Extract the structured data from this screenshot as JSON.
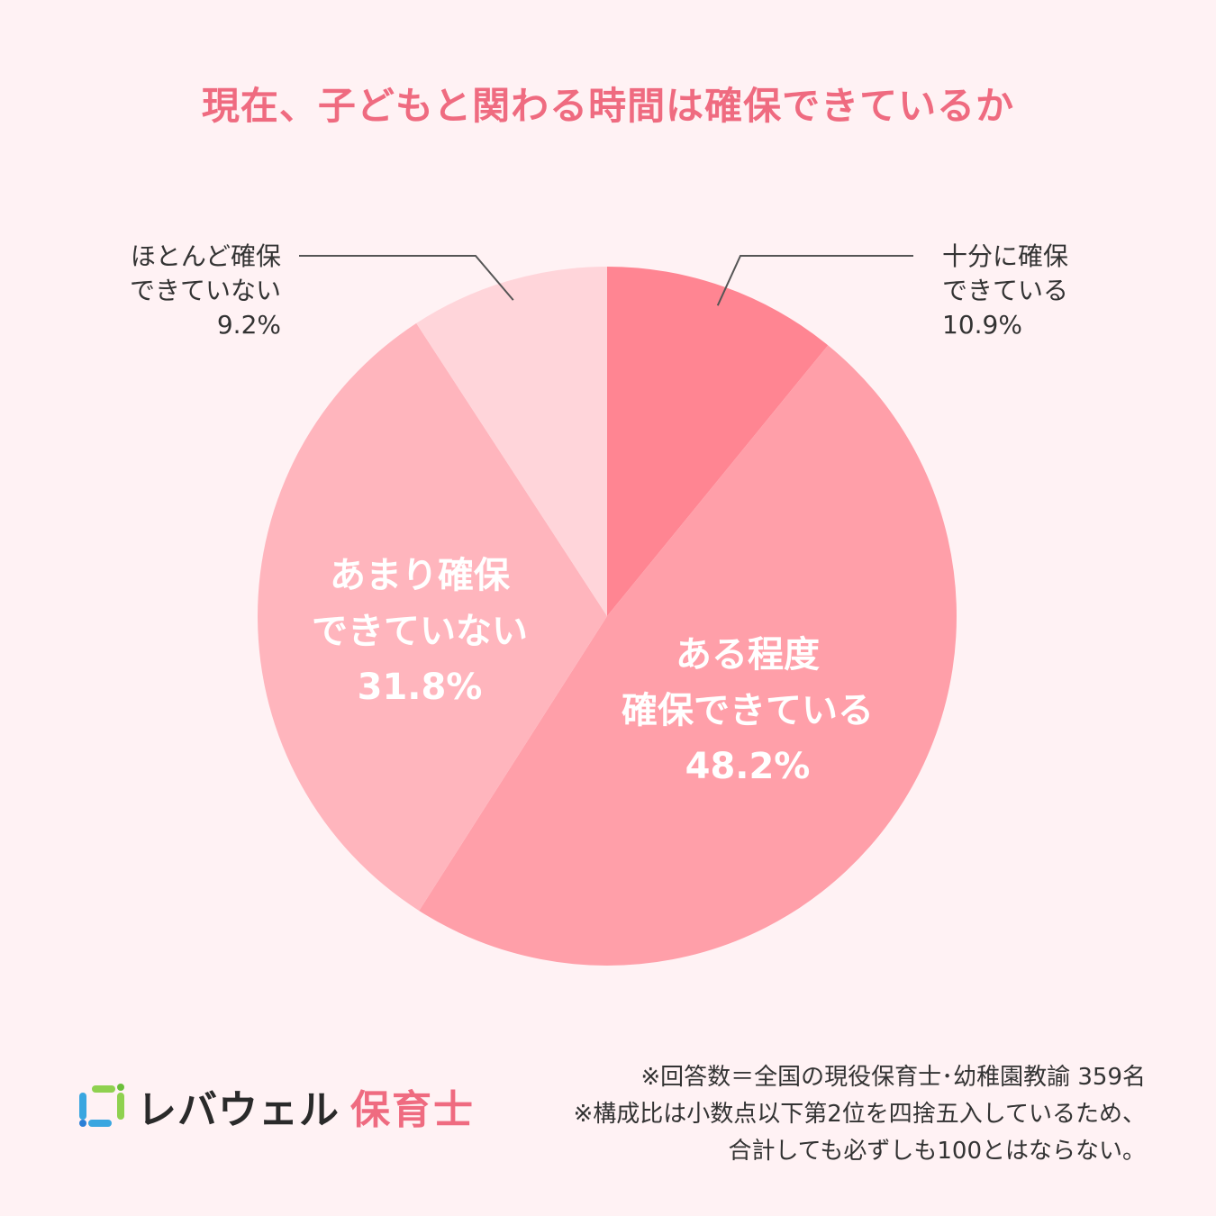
{
  "colors": {
    "background": "#fff2f4",
    "title": "#ef6b80",
    "brand_accent": "#ef6b80"
  },
  "chart_data": {
    "type": "pie",
    "title": "現在、子どもと関わる時間は確保できているか",
    "start": "12 o'clock, clockwise",
    "slices": [
      {
        "label_lines": [
          "十分に確保",
          "できている"
        ],
        "value_text": "10.9%",
        "value": 10.9,
        "color": "#ff8592",
        "label_style": "outside"
      },
      {
        "label_lines": [
          "ある程度",
          "確保できている"
        ],
        "value_text": "48.2%",
        "value": 48.2,
        "color": "#ff9fa9",
        "label_style": "inside"
      },
      {
        "label_lines": [
          "あまり確保",
          "できていない"
        ],
        "value_text": "31.8%",
        "value": 31.8,
        "color": "#ffb5bd",
        "label_style": "inside"
      },
      {
        "label_lines": [
          "ほとんど確保",
          "できていない"
        ],
        "value_text": "9.2%",
        "value": 9.2,
        "color": "#ffd5da",
        "label_style": "outside"
      }
    ]
  },
  "logo": {
    "name": "レバウェル",
    "sub": "保育士",
    "icon": "logo-brackets-icon"
  },
  "notes": [
    "※回答数＝全国の現役保育士･幼稚園教諭 359名",
    "※構成比は小数点以下第2位を四捨五入しているため、",
    "合計しても必ずしも100とはならない。"
  ]
}
